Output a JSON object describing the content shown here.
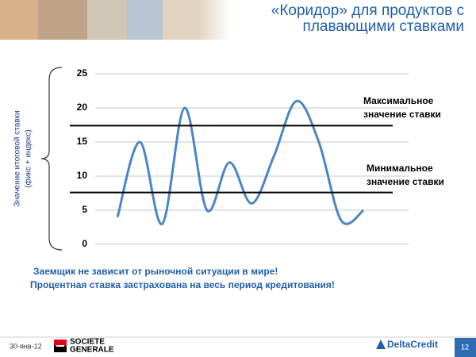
{
  "header": {
    "title": [
      "«Коридор» для продуктов с",
      "плавающими ставками"
    ]
  },
  "chart_data": {
    "type": "line",
    "y_label": [
      "Значение итоговой ставки",
      "(фикс + индекс)"
    ],
    "categories": [
      null,
      null,
      null,
      null,
      null,
      null,
      null,
      null,
      null,
      null,
      null,
      null
    ],
    "values": [
      4,
      15,
      3,
      20,
      5,
      12,
      6,
      13,
      21,
      15,
      3.5,
      5
    ],
    "color": "#4a86c5",
    "ylim": [
      0,
      25
    ],
    "yticks": [
      0,
      5,
      10,
      15,
      20,
      25
    ],
    "grid": true,
    "corridor": [
      {
        "value": 17.4,
        "label": [
          "Максимальное",
          "значение ставки"
        ]
      },
      {
        "value": 7.6,
        "label": [
          "Минимальное",
          "значение ставки"
        ]
      }
    ]
  },
  "notes": [
    "Заемщик не зависит от рыночной ситуации в мире!",
    "Процентная ставка застрахована на весь период кредитования!"
  ],
  "footer": {
    "date": "30-янв-12",
    "brand": [
      "SOCIETE",
      "GENERALE"
    ],
    "logo": "DeltaCredit",
    "page": "12"
  }
}
